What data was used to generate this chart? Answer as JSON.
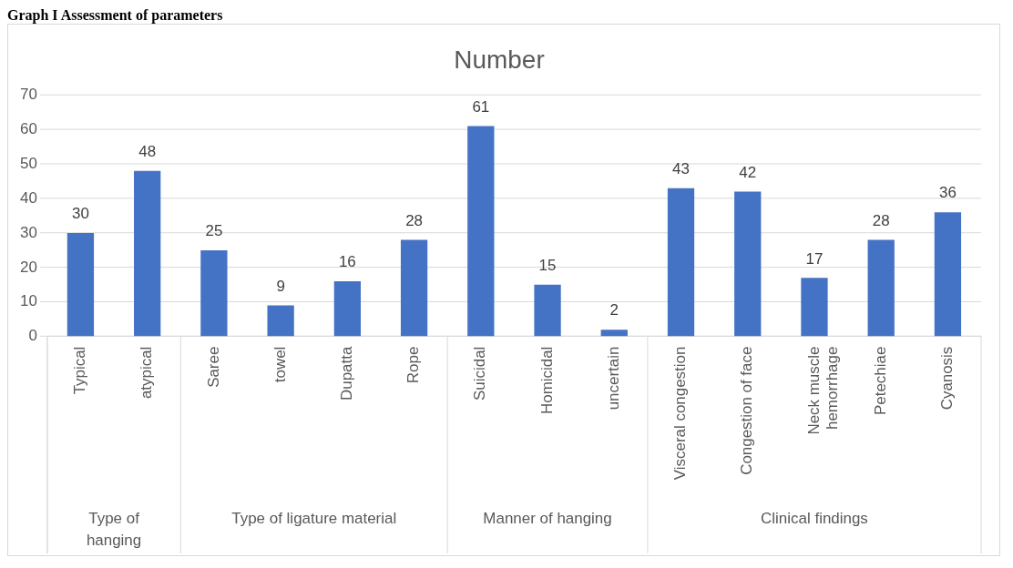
{
  "chart_data": {
    "type": "bar",
    "title": "Number",
    "categories": [
      "Typical",
      "atypical",
      "Saree",
      "towel",
      "Dupatta",
      "Rope",
      "Suicidal",
      "Homicidal",
      "uncertain",
      "Visceral congestion",
      "Congestion of face",
      "Neck muscle hemorrhage",
      "Petechiae",
      "Cyanosis"
    ],
    "values": [
      30,
      48,
      25,
      9,
      16,
      28,
      61,
      15,
      2,
      43,
      42,
      17,
      28,
      36
    ],
    "color": "#4472c4",
    "ylim": [
      0,
      70
    ],
    "yticks": [
      0,
      10,
      20,
      30,
      40,
      50,
      60,
      70
    ],
    "grid": "y",
    "legend": false,
    "data_labels": true,
    "annotations": [
      "Graph I Assessment of parameters",
      "Type of hanging",
      "Type of ligature material",
      "Manner of hanging",
      "Clinical findings"
    ]
  }
}
